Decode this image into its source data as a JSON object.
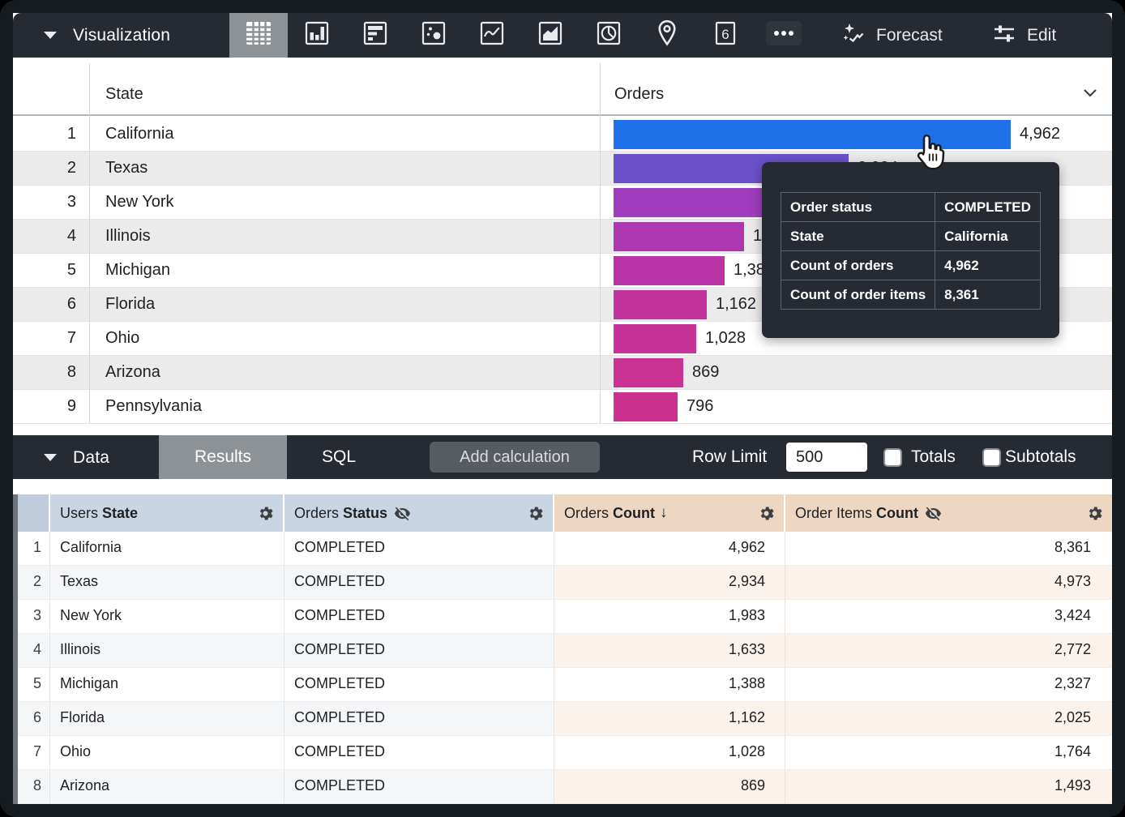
{
  "viz_toolbar": {
    "title": "Visualization",
    "viz_type_icons": [
      "table-viz-icon",
      "column-chart-icon",
      "bar-chart-icon",
      "scatter-plot-icon",
      "line-chart-icon",
      "area-chart-icon",
      "pie-chart-icon",
      "map-pin-icon",
      "single-value-icon",
      "more-viz-types-icon"
    ],
    "selected_viz": "table",
    "forecast_label": "Forecast",
    "edit_label": "Edit"
  },
  "viz_table": {
    "state_header": "State",
    "orders_header": "Orders",
    "rows": [
      {
        "num": "1",
        "state": "California",
        "label": "4,962",
        "value": 4962,
        "color": "#1d70e8"
      },
      {
        "num": "2",
        "state": "Texas",
        "label": "2,934",
        "value": 2934,
        "color": "#6b51c9"
      },
      {
        "num": "3",
        "state": "New York",
        "label": "1,983",
        "value": 1983,
        "color": "#a03cbe"
      },
      {
        "num": "4",
        "state": "Illinois",
        "label": "1,633",
        "value": 1633,
        "color": "#ae37b2"
      },
      {
        "num": "5",
        "state": "Michigan",
        "label": "1,388",
        "value": 1388,
        "color": "#ba34a7"
      },
      {
        "num": "6",
        "state": "Florida",
        "label": "1,162",
        "value": 1162,
        "color": "#c2339e"
      },
      {
        "num": "7",
        "state": "Ohio",
        "label": "1,028",
        "value": 1028,
        "color": "#c73298"
      },
      {
        "num": "8",
        "state": "Arizona",
        "label": "869",
        "value": 869,
        "color": "#ca3294"
      },
      {
        "num": "9",
        "state": "Pennsylvania",
        "label": "796",
        "value": 796,
        "color": "#cc3190"
      }
    ],
    "max_value": 4962
  },
  "tooltip": {
    "rows": [
      {
        "label": "Order status",
        "value": "COMPLETED"
      },
      {
        "label": "State",
        "value": "California"
      },
      {
        "label": "Count of orders",
        "value": "4,962"
      },
      {
        "label": "Count of order items",
        "value": "8,361"
      }
    ]
  },
  "data_panel": {
    "title": "Data",
    "tabs": [
      {
        "label": "Results",
        "selected": true
      },
      {
        "label": "SQL",
        "selected": false
      }
    ],
    "add_calculation_label": "Add calculation",
    "row_limit_label": "Row Limit",
    "row_limit_value": "500",
    "totals_label": "Totals",
    "totals_checked": false,
    "subtotals_label": "Subtotals",
    "subtotals_checked": false
  },
  "data_table": {
    "headers": [
      {
        "prefix": "Users",
        "name": "State",
        "type": "dimension",
        "hidden_from_viz": false,
        "sorted": null
      },
      {
        "prefix": "Orders",
        "name": "Status",
        "type": "dimension",
        "hidden_from_viz": true,
        "sorted": null
      },
      {
        "prefix": "Orders",
        "name": "Count",
        "type": "measure",
        "hidden_from_viz": false,
        "sorted": "desc"
      },
      {
        "prefix": "Order Items",
        "name": "Count",
        "type": "measure",
        "hidden_from_viz": true,
        "sorted": null
      }
    ],
    "rows": [
      {
        "num": "1",
        "state": "California",
        "status": "COMPLETED",
        "orders_count": "4,962",
        "order_items_count": "8,361"
      },
      {
        "num": "2",
        "state": "Texas",
        "status": "COMPLETED",
        "orders_count": "2,934",
        "order_items_count": "4,973"
      },
      {
        "num": "3",
        "state": "New York",
        "status": "COMPLETED",
        "orders_count": "1,983",
        "order_items_count": "3,424"
      },
      {
        "num": "4",
        "state": "Illinois",
        "status": "COMPLETED",
        "orders_count": "1,633",
        "order_items_count": "2,772"
      },
      {
        "num": "5",
        "state": "Michigan",
        "status": "COMPLETED",
        "orders_count": "1,388",
        "order_items_count": "2,327"
      },
      {
        "num": "6",
        "state": "Florida",
        "status": "COMPLETED",
        "orders_count": "1,162",
        "order_items_count": "2,025"
      },
      {
        "num": "7",
        "state": "Ohio",
        "status": "COMPLETED",
        "orders_count": "1,028",
        "order_items_count": "1,764"
      },
      {
        "num": "8",
        "state": "Arizona",
        "status": "COMPLETED",
        "orders_count": "869",
        "order_items_count": "1,493"
      }
    ]
  },
  "chart_data": {
    "type": "bar",
    "orientation": "horizontal",
    "title": "Orders",
    "categories": [
      "California",
      "Texas",
      "New York",
      "Illinois",
      "Michigan",
      "Florida",
      "Ohio",
      "Arizona",
      "Pennsylvania"
    ],
    "values": [
      4962,
      2934,
      1983,
      1633,
      1388,
      1162,
      1028,
      869,
      796
    ],
    "series_label": "Orders Count",
    "data_labels": [
      "4,962",
      "2,934",
      "1,983",
      "1,633",
      "1,388",
      "1,162",
      "1,028",
      "869",
      "796"
    ],
    "bar_colors": [
      "#1d70e8",
      "#6b51c9",
      "#a03cbe",
      "#ae37b2",
      "#ba34a7",
      "#c2339e",
      "#c73298",
      "#ca3294",
      "#cc3190"
    ],
    "xlim": [
      0,
      4962
    ],
    "legend": "off",
    "grid": "off"
  },
  "colors": {
    "toolbar_bg": "#262b33",
    "selected_tab_bg": "#8d9297",
    "dimension_header_bg": "#c9d5e2",
    "measure_header_bg": "#eed7c2",
    "dimension_row_tint": "#f5f6f8",
    "measure_row_tint": "#fbf2ec",
    "viz_alt_row": "#ebebec",
    "bar_blue": "#1d70e8"
  }
}
